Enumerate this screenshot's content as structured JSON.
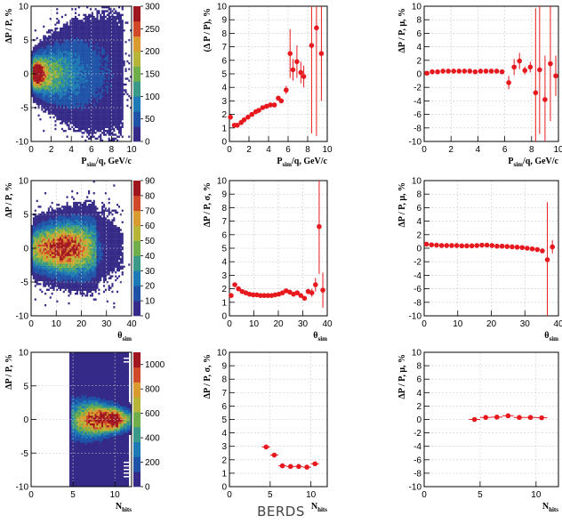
{
  "footer_label": "BERDS",
  "colors": {
    "marker": "#e8191e",
    "grid": "#c9c9c9",
    "axis": "#000000",
    "palette": [
      "#352a87",
      "#1f53a8",
      "#1d7ab4",
      "#3a9a8a",
      "#6fae4a",
      "#b7b43a",
      "#d99a2f",
      "#d04a2a",
      "#a0161e"
    ]
  },
  "chart_data": [
    {
      "id": "hist-p",
      "type": "heatmap",
      "ylabel": "ΔP / P, %",
      "xlabel": {
        "main": "P",
        "sub": "sim",
        "rest": "/q, GeV/c"
      },
      "xlim": [
        0,
        10
      ],
      "ylim": [
        -10,
        10
      ],
      "xticks": [
        0,
        2,
        4,
        6,
        8,
        10
      ],
      "yticks": [
        -10,
        -5,
        0,
        5,
        10
      ],
      "zlim": [
        0,
        300
      ],
      "zticks": [
        0,
        50,
        100,
        150,
        200,
        250,
        300
      ],
      "grid": true,
      "density": "core near x=0.7, y=0; sigma grows with x; sparse beyond x=9"
    },
    {
      "id": "sigma-p",
      "type": "scatter",
      "ylabel": "(Δ P / P), %",
      "xlabel": {
        "main": "P",
        "sub": "sim",
        "rest": "/q, GeV/c"
      },
      "xlim": [
        0,
        10
      ],
      "ylim": [
        0,
        10
      ],
      "xticks": [
        0,
        2,
        4,
        6,
        8,
        10
      ],
      "yticks": [
        0,
        1,
        2,
        3,
        4,
        5,
        6,
        7,
        8,
        9,
        10
      ],
      "grid": true,
      "points": [
        {
          "x": 0.1,
          "y": 1.8,
          "ey": 0.1
        },
        {
          "x": 0.5,
          "y": 1.2,
          "ey": 0.05
        },
        {
          "x": 0.8,
          "y": 1.2,
          "ey": 0.05
        },
        {
          "x": 1.2,
          "y": 1.4,
          "ey": 0.05
        },
        {
          "x": 1.5,
          "y": 1.6,
          "ey": 0.05
        },
        {
          "x": 1.9,
          "y": 1.8,
          "ey": 0.05
        },
        {
          "x": 2.3,
          "y": 2.0,
          "ey": 0.05
        },
        {
          "x": 2.7,
          "y": 2.2,
          "ey": 0.05
        },
        {
          "x": 3.0,
          "y": 2.3,
          "ey": 0.05
        },
        {
          "x": 3.4,
          "y": 2.5,
          "ey": 0.05
        },
        {
          "x": 3.8,
          "y": 2.6,
          "ey": 0.1
        },
        {
          "x": 4.2,
          "y": 2.7,
          "ey": 0.1
        },
        {
          "x": 4.6,
          "y": 2.7,
          "ey": 0.1
        },
        {
          "x": 5.0,
          "y": 3.2,
          "ey": 0.1
        },
        {
          "x": 5.3,
          "y": 3.0,
          "ey": 0.15
        },
        {
          "x": 5.8,
          "y": 3.8,
          "ey": 0.3
        },
        {
          "x": 6.2,
          "y": 6.5,
          "ey": 1.8
        },
        {
          "x": 6.5,
          "y": 5.3,
          "ey": 0.8
        },
        {
          "x": 6.9,
          "y": 5.9,
          "ey": 1.2
        },
        {
          "x": 7.3,
          "y": 5.1,
          "ey": 0.8
        },
        {
          "x": 7.6,
          "y": 4.8,
          "ey": 0.8
        },
        {
          "x": 8.4,
          "y": 7.1,
          "ey": 6.5
        },
        {
          "x": 8.9,
          "y": 8.4,
          "ey": 8.0
        },
        {
          "x": 9.4,
          "y": 6.5,
          "ey": 3.5
        }
      ]
    },
    {
      "id": "mu-p",
      "type": "scatter",
      "ylabel": "ΔP / P, μ, %",
      "xlabel": {
        "main": "P",
        "sub": "sim",
        "rest": "/q, GeV/c"
      },
      "xlim": [
        0,
        10
      ],
      "ylim": [
        -10,
        10
      ],
      "xticks": [
        0,
        2,
        4,
        6,
        8,
        10
      ],
      "yticks": [
        -10,
        -8,
        -6,
        -4,
        -2,
        0,
        2,
        4,
        6,
        8,
        10
      ],
      "grid": true,
      "points": [
        {
          "x": 0.2,
          "y": 0.1,
          "ey": 0.05
        },
        {
          "x": 0.6,
          "y": 0.3,
          "ey": 0.05
        },
        {
          "x": 1.0,
          "y": 0.3,
          "ey": 0.05
        },
        {
          "x": 1.4,
          "y": 0.4,
          "ey": 0.05
        },
        {
          "x": 1.8,
          "y": 0.4,
          "ey": 0.05
        },
        {
          "x": 2.2,
          "y": 0.4,
          "ey": 0.05
        },
        {
          "x": 2.6,
          "y": 0.4,
          "ey": 0.05
        },
        {
          "x": 3.0,
          "y": 0.4,
          "ey": 0.05
        },
        {
          "x": 3.4,
          "y": 0.4,
          "ey": 0.05
        },
        {
          "x": 3.8,
          "y": 0.3,
          "ey": 0.05
        },
        {
          "x": 4.2,
          "y": 0.4,
          "ey": 0.05
        },
        {
          "x": 4.6,
          "y": 0.4,
          "ey": 0.1
        },
        {
          "x": 5.0,
          "y": 0.4,
          "ey": 0.1
        },
        {
          "x": 5.4,
          "y": 0.4,
          "ey": 0.1
        },
        {
          "x": 5.8,
          "y": 0.3,
          "ey": 0.15
        },
        {
          "x": 6.3,
          "y": -1.3,
          "ey": 1.0
        },
        {
          "x": 6.7,
          "y": 1.0,
          "ey": 1.2
        },
        {
          "x": 7.1,
          "y": 1.9,
          "ey": 1.2
        },
        {
          "x": 7.5,
          "y": 0.5,
          "ey": 0.6
        },
        {
          "x": 7.9,
          "y": 1.0,
          "ey": 0.8
        },
        {
          "x": 8.3,
          "y": -2.8,
          "ey": 12.5
        },
        {
          "x": 8.6,
          "y": 0.6,
          "ey": 9.5
        },
        {
          "x": 9.0,
          "y": -3.8,
          "ey": 6.5
        },
        {
          "x": 9.4,
          "y": 1.5,
          "ey": 8.5
        },
        {
          "x": 9.8,
          "y": -0.3,
          "ey": 3.0
        }
      ]
    },
    {
      "id": "hist-theta",
      "type": "heatmap",
      "ylabel": "ΔP / P, %",
      "xlabel": {
        "main": "θ",
        "sub": "sim",
        "rest": ""
      },
      "xlim": [
        0,
        40
      ],
      "ylim": [
        -10,
        10
      ],
      "xticks": [
        0,
        10,
        20,
        30,
        40
      ],
      "yticks": [
        -10,
        -5,
        0,
        5,
        10
      ],
      "zlim": [
        0,
        90
      ],
      "zticks": [
        0,
        10,
        20,
        30,
        40,
        50,
        60,
        70,
        80,
        90
      ],
      "grid": true,
      "density": "broad band x=0..25, peak near x=12, y=0; sparse beyond x=35"
    },
    {
      "id": "sigma-theta",
      "type": "scatter",
      "ylabel": "ΔP / P, σ, %",
      "xlabel": {
        "main": "θ",
        "sub": "sim",
        "rest": ""
      },
      "xlim": [
        0,
        40
      ],
      "ylim": [
        0,
        10
      ],
      "xticks": [
        0,
        10,
        20,
        30,
        40
      ],
      "yticks": [
        0,
        1,
        2,
        3,
        4,
        5,
        6,
        7,
        8,
        9,
        10
      ],
      "grid": true,
      "points": [
        {
          "x": 0.7,
          "y": 1.5,
          "ey": 0.1
        },
        {
          "x": 2.2,
          "y": 2.3,
          "ey": 0.1
        },
        {
          "x": 3.7,
          "y": 2.0,
          "ey": 0.05
        },
        {
          "x": 5.2,
          "y": 1.8,
          "ey": 0.05
        },
        {
          "x": 6.7,
          "y": 1.7,
          "ey": 0.05
        },
        {
          "x": 8.2,
          "y": 1.6,
          "ey": 0.05
        },
        {
          "x": 9.7,
          "y": 1.55,
          "ey": 0.05
        },
        {
          "x": 11.2,
          "y": 1.55,
          "ey": 0.05
        },
        {
          "x": 12.7,
          "y": 1.5,
          "ey": 0.05
        },
        {
          "x": 14.2,
          "y": 1.5,
          "ey": 0.05
        },
        {
          "x": 15.7,
          "y": 1.5,
          "ey": 0.05
        },
        {
          "x": 17.2,
          "y": 1.5,
          "ey": 0.05
        },
        {
          "x": 18.7,
          "y": 1.55,
          "ey": 0.05
        },
        {
          "x": 20.2,
          "y": 1.6,
          "ey": 0.05
        },
        {
          "x": 21.7,
          "y": 1.7,
          "ey": 0.05
        },
        {
          "x": 23.2,
          "y": 1.85,
          "ey": 0.05
        },
        {
          "x": 24.7,
          "y": 1.75,
          "ey": 0.05
        },
        {
          "x": 26.2,
          "y": 1.6,
          "ey": 0.05
        },
        {
          "x": 27.7,
          "y": 1.7,
          "ey": 0.1
        },
        {
          "x": 29.2,
          "y": 1.5,
          "ey": 0.1
        },
        {
          "x": 30.7,
          "y": 1.3,
          "ey": 0.1
        },
        {
          "x": 32.2,
          "y": 1.8,
          "ey": 0.2
        },
        {
          "x": 33.7,
          "y": 1.7,
          "ey": 0.3
        },
        {
          "x": 35.2,
          "y": 2.3,
          "ey": 0.5
        },
        {
          "x": 36.7,
          "y": 6.6,
          "ey": 3.5
        },
        {
          "x": 38.2,
          "y": 1.9,
          "ey": 1.3
        }
      ]
    },
    {
      "id": "mu-theta",
      "type": "scatter",
      "ylabel": "ΔP / P, μ, %",
      "xlabel": {
        "main": "θ",
        "sub": "sim",
        "rest": ""
      },
      "xlim": [
        0,
        40
      ],
      "ylim": [
        -10,
        10
      ],
      "xticks": [
        0,
        10,
        20,
        30,
        40
      ],
      "yticks": [
        -10,
        -8,
        -6,
        -4,
        -2,
        0,
        2,
        4,
        6,
        8,
        10
      ],
      "grid": true,
      "points": [
        {
          "x": 0.7,
          "y": 0.6,
          "ey": 0.05
        },
        {
          "x": 2.2,
          "y": 0.5,
          "ey": 0.05
        },
        {
          "x": 3.7,
          "y": 0.45,
          "ey": 0.05
        },
        {
          "x": 5.2,
          "y": 0.4,
          "ey": 0.05
        },
        {
          "x": 6.7,
          "y": 0.4,
          "ey": 0.05
        },
        {
          "x": 8.2,
          "y": 0.4,
          "ey": 0.05
        },
        {
          "x": 9.7,
          "y": 0.4,
          "ey": 0.05
        },
        {
          "x": 11.2,
          "y": 0.35,
          "ey": 0.05
        },
        {
          "x": 12.7,
          "y": 0.35,
          "ey": 0.05
        },
        {
          "x": 14.2,
          "y": 0.35,
          "ey": 0.05
        },
        {
          "x": 15.7,
          "y": 0.4,
          "ey": 0.05
        },
        {
          "x": 17.2,
          "y": 0.45,
          "ey": 0.05
        },
        {
          "x": 18.7,
          "y": 0.45,
          "ey": 0.05
        },
        {
          "x": 20.2,
          "y": 0.4,
          "ey": 0.05
        },
        {
          "x": 21.7,
          "y": 0.3,
          "ey": 0.05
        },
        {
          "x": 23.2,
          "y": 0.3,
          "ey": 0.05
        },
        {
          "x": 24.7,
          "y": 0.25,
          "ey": 0.05
        },
        {
          "x": 26.2,
          "y": 0.2,
          "ey": 0.05
        },
        {
          "x": 27.7,
          "y": 0.15,
          "ey": 0.05
        },
        {
          "x": 29.2,
          "y": 0.1,
          "ey": 0.1
        },
        {
          "x": 30.7,
          "y": 0.0,
          "ey": 0.1
        },
        {
          "x": 32.2,
          "y": -0.1,
          "ey": 0.1
        },
        {
          "x": 33.7,
          "y": -0.2,
          "ey": 0.15
        },
        {
          "x": 35.2,
          "y": -0.4,
          "ey": 0.3
        },
        {
          "x": 36.7,
          "y": -1.7,
          "ey": 8.5
        },
        {
          "x": 38.2,
          "y": 0.2,
          "ey": 1.0
        }
      ]
    },
    {
      "id": "hist-nhits",
      "type": "heatmap",
      "ylabel": "ΔP / P, %",
      "xlabel": {
        "main": "N",
        "sub": "hits",
        "rest": ""
      },
      "xlim": [
        0,
        12
      ],
      "ylim": [
        -10,
        10
      ],
      "xticks": [
        0,
        5,
        10
      ],
      "yticks": [
        -10,
        -5,
        0,
        5,
        10
      ],
      "zlim": [
        0,
        1100
      ],
      "zticks": [
        0,
        200,
        400,
        600,
        800,
        1000
      ],
      "grid": true,
      "density": "columns x=4..11; narrow core at y=0 for x=6..10, peak at x=10"
    },
    {
      "id": "sigma-nhits",
      "type": "scatter",
      "ylabel": "ΔP / P, σ, %",
      "xlabel": {
        "main": "N",
        "sub": "hits",
        "rest": ""
      },
      "xlim": [
        0,
        12
      ],
      "ylim": [
        0,
        10
      ],
      "xticks": [
        0,
        5,
        10
      ],
      "yticks": [
        0,
        1,
        2,
        3,
        4,
        5,
        6,
        7,
        8,
        9,
        10
      ],
      "grid": true,
      "points": [
        {
          "x": 4.5,
          "y": 2.95,
          "ey": 0.05,
          "ex": 0.5
        },
        {
          "x": 5.5,
          "y": 2.35,
          "ey": 0.05,
          "ex": 0.5
        },
        {
          "x": 6.5,
          "y": 1.55,
          "ey": 0.05,
          "ex": 0.5
        },
        {
          "x": 7.5,
          "y": 1.5,
          "ey": 0.05,
          "ex": 0.5
        },
        {
          "x": 8.5,
          "y": 1.5,
          "ey": 0.05,
          "ex": 0.5
        },
        {
          "x": 9.5,
          "y": 1.45,
          "ey": 0.05,
          "ex": 0.5
        },
        {
          "x": 10.5,
          "y": 1.7,
          "ey": 0.05,
          "ex": 0.5
        }
      ]
    },
    {
      "id": "mu-nhits",
      "type": "scatter",
      "ylabel": "ΔP / P, μ, %",
      "xlabel": {
        "main": "N",
        "sub": "hits",
        "rest": ""
      },
      "xlim": [
        0,
        12
      ],
      "ylim": [
        -10,
        10
      ],
      "xticks": [
        0,
        5,
        10
      ],
      "yticks": [
        -10,
        -8,
        -6,
        -4,
        -2,
        0,
        2,
        4,
        6,
        8,
        10
      ],
      "grid": true,
      "points": [
        {
          "x": 4.5,
          "y": 0.0,
          "ey": 0.05,
          "ex": 0.5
        },
        {
          "x": 5.5,
          "y": 0.3,
          "ey": 0.05,
          "ex": 0.5
        },
        {
          "x": 6.5,
          "y": 0.35,
          "ey": 0.05,
          "ex": 0.5
        },
        {
          "x": 7.5,
          "y": 0.55,
          "ey": 0.05,
          "ex": 0.5
        },
        {
          "x": 8.5,
          "y": 0.3,
          "ey": 0.05,
          "ex": 0.5
        },
        {
          "x": 9.5,
          "y": 0.3,
          "ey": 0.05,
          "ex": 0.5
        },
        {
          "x": 10.5,
          "y": 0.25,
          "ey": 0.05,
          "ex": 0.5
        }
      ]
    }
  ]
}
